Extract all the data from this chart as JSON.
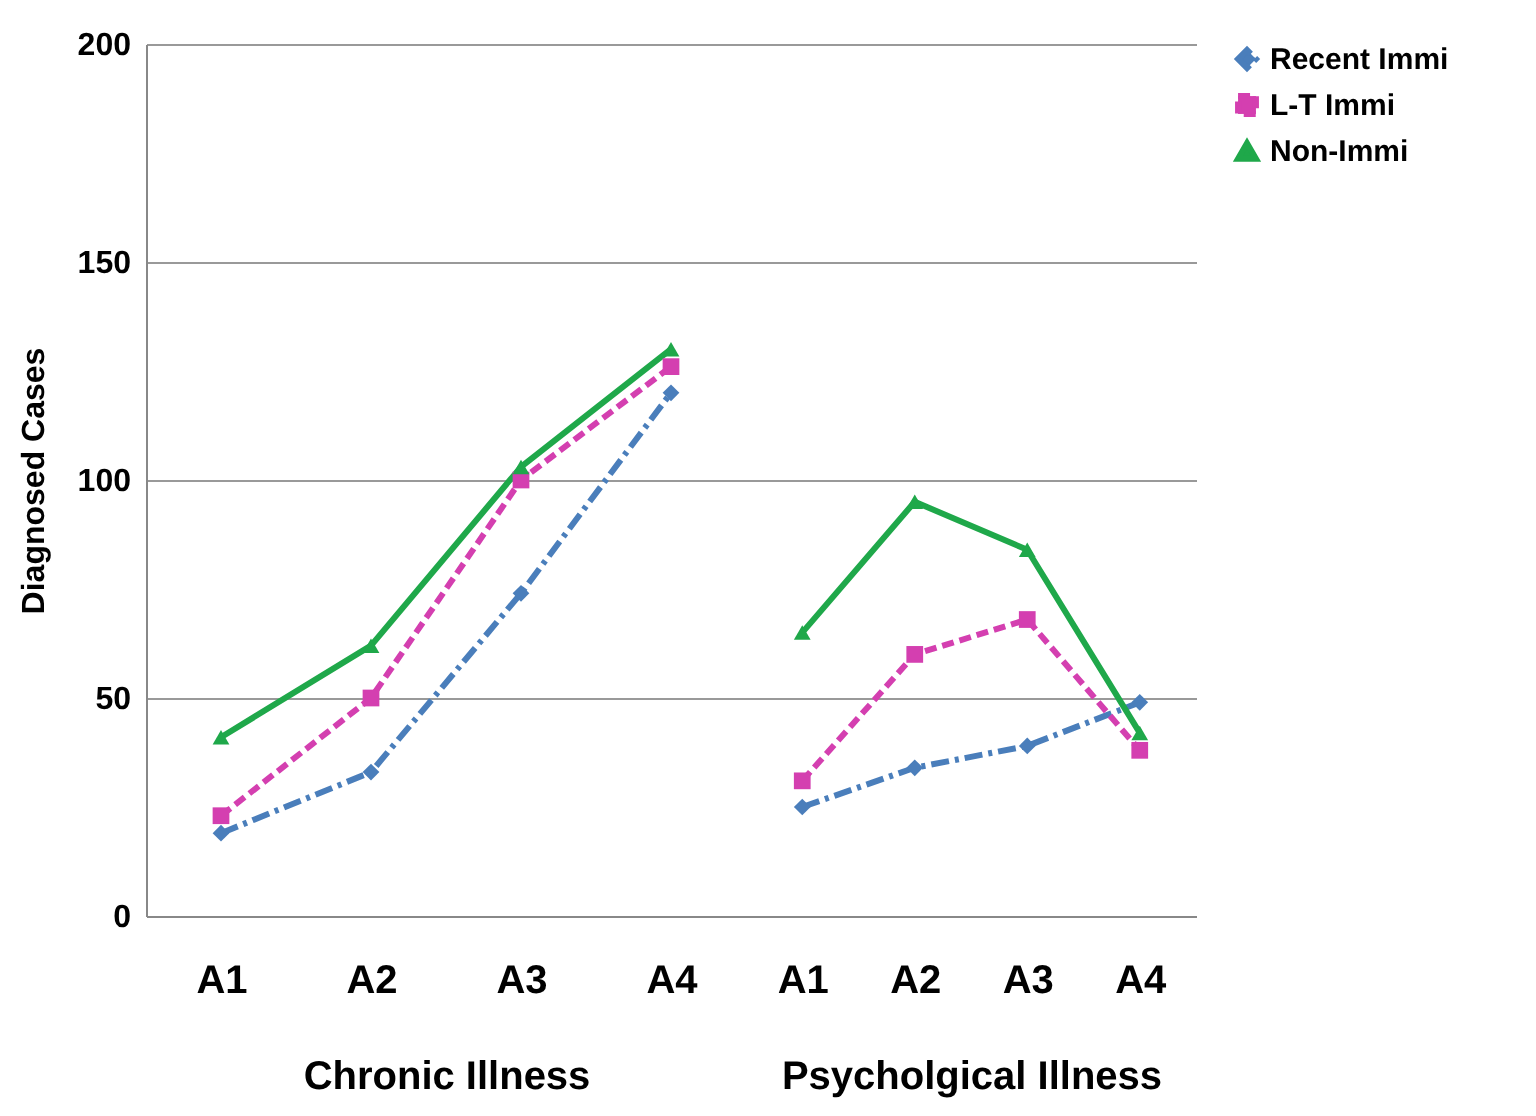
{
  "chart_data": [
    {
      "type": "line",
      "xlabel": "Chronic Illness",
      "ylabel": "Diagnosed Cases",
      "categories": [
        "A1",
        "A2",
        "A3",
        "A4"
      ],
      "ylim": [
        0,
        200
      ],
      "yticks": [
        0,
        50,
        100,
        150,
        200
      ],
      "grid": "y",
      "legend": false,
      "series": [
        {
          "color": "#4a7ebb",
          "marker": "diamond",
          "line_style": "dashdot",
          "values": [
            19,
            33,
            74,
            120
          ]
        },
        {
          "color": "#d43fb0",
          "marker": "square",
          "line_style": "dashed",
          "values": [
            23,
            50,
            100,
            126
          ]
        },
        {
          "color": "#1fa84a",
          "marker": "triangle",
          "line_style": "solid",
          "values": [
            41,
            62,
            103,
            130
          ]
        }
      ]
    },
    {
      "type": "line",
      "xlabel": "Psycholgical Illness",
      "categories": [
        "A1",
        "A2",
        "A3",
        "A4"
      ],
      "ylim": [
        0,
        200
      ],
      "yticks": [
        0,
        50,
        100,
        150,
        200
      ],
      "grid": "y",
      "legend": "right",
      "tick_labels": "x",
      "series": [
        {
          "name": "Recent Immi",
          "color": "#4a7ebb",
          "marker": "diamond",
          "line_style": "dashdot",
          "values": [
            25,
            34,
            39,
            49
          ]
        },
        {
          "name": "L-T Immi",
          "color": "#d43fb0",
          "marker": "square",
          "line_style": "dashed",
          "values": [
            31,
            60,
            68,
            38
          ]
        },
        {
          "name": "Non-Immi",
          "color": "#1fa84a",
          "marker": "triangle",
          "line_style": "solid",
          "values": [
            65,
            95,
            84,
            42
          ]
        }
      ]
    }
  ]
}
